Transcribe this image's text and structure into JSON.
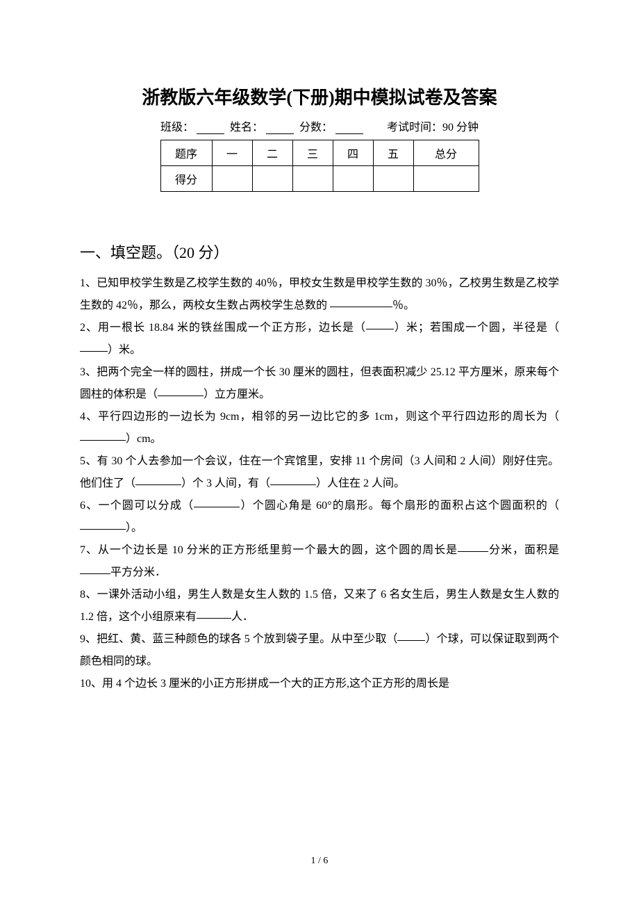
{
  "title": "浙教版六年级数学(下册)期中模拟试卷及答案",
  "info": {
    "class_label": "班级：",
    "name_label": "姓名：",
    "score_label": "分数：",
    "exam_time": "考试时间：90 分钟"
  },
  "score_table": {
    "row1": [
      "题序",
      "一",
      "二",
      "三",
      "四",
      "五",
      "总分"
    ],
    "row2_header": "得分"
  },
  "section_title": "一、填空题。（20 分）",
  "questions": {
    "q1a": "1、已知甲校学生数是乙校学生数的 40％，甲校女生数是甲校学生数的 30％，乙校男生数是乙校学生数的 42％，那么，两校女生数占两校学生总数的",
    "q1b": "％。",
    "q2a": "2、用一根长 18.84 米的铁丝围成一个正方形，边长是（",
    "q2b": "）米；若围成一个圆，半径是（",
    "q2c": "）米。",
    "q3a": "3、把两个完全一样的圆柱，拼成一个长 30 厘米的圆柱，但表面积减少 25.12 平方厘米，原来每个圆柱的体积是（",
    "q3b": "）立方厘米。",
    "q4a": "4、平行四边形的一边长为 9cm，相邻的另一边比它的多 1cm，则这个平行四边形的周长为（",
    "q4b": "）cm。",
    "q5a": "5、有 30 个人去参加一个会议，住在一个宾馆里，安排 11 个房间（3 人间和 2 人间）刚好住完。他们住了（",
    "q5b": "）个 3 人间，有（",
    "q5c": "）人住在 2 人间。",
    "q6a": "6、一个圆可以分成（",
    "q6b": "）个圆心角是 60°的扇形。每个扇形的面积占这个圆面积的（",
    "q6c": "）。",
    "q7a": "7、从一个边长是 10 分米的正方形纸里剪一个最大的圆，这个圆的周长是",
    "q7b": "分米，面积是",
    "q7c": "平方分米．",
    "q8a": "8、一课外活动小组，男生人数是女生人数的 1.5 倍，又来了 6 名女生后，男生人数是女生人数的 1.2 倍，这个小组原来有",
    "q8b": "人．",
    "q9a": "9、把红、黄、蓝三种颜色的球各 5 个放到袋子里。从中至少取（",
    "q9b": "）个球，可以保证取到两个颜色相同的球。",
    "q10": "10、用 4 个边长 3 厘米的小正方形拼成一个大的正方形,这个正方形的周长是"
  },
  "footer": "1 / 6"
}
